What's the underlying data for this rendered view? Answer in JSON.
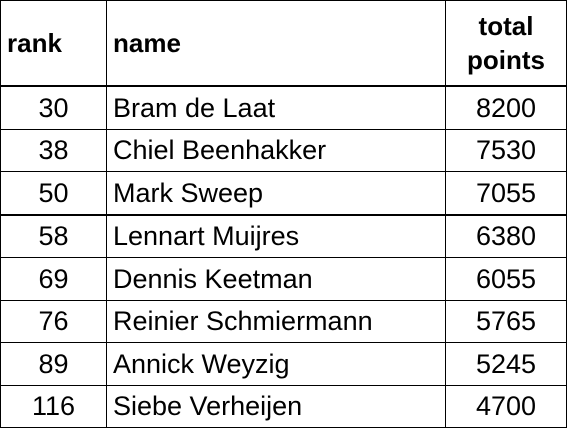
{
  "table": {
    "headers": {
      "rank": "rank",
      "name": "name",
      "points_line1": "total",
      "points_line2": "points"
    },
    "rows": [
      {
        "rank": "30",
        "name": "Bram de Laat",
        "points": "8200"
      },
      {
        "rank": "38",
        "name": "Chiel Beenhakker",
        "points": "7530"
      },
      {
        "rank": "50",
        "name": "Mark Sweep",
        "points": "7055"
      },
      {
        "rank": "58",
        "name": "Lennart Muijres",
        "points": "6380"
      },
      {
        "rank": "69",
        "name": "Dennis Keetman",
        "points": "6055"
      },
      {
        "rank": "76",
        "name": "Reinier Schmiermann",
        "points": "5765"
      },
      {
        "rank": "89",
        "name": "Annick Weyzig",
        "points": "5245"
      },
      {
        "rank": "116",
        "name": "Siebe Verheijen",
        "points": "4700"
      }
    ]
  }
}
